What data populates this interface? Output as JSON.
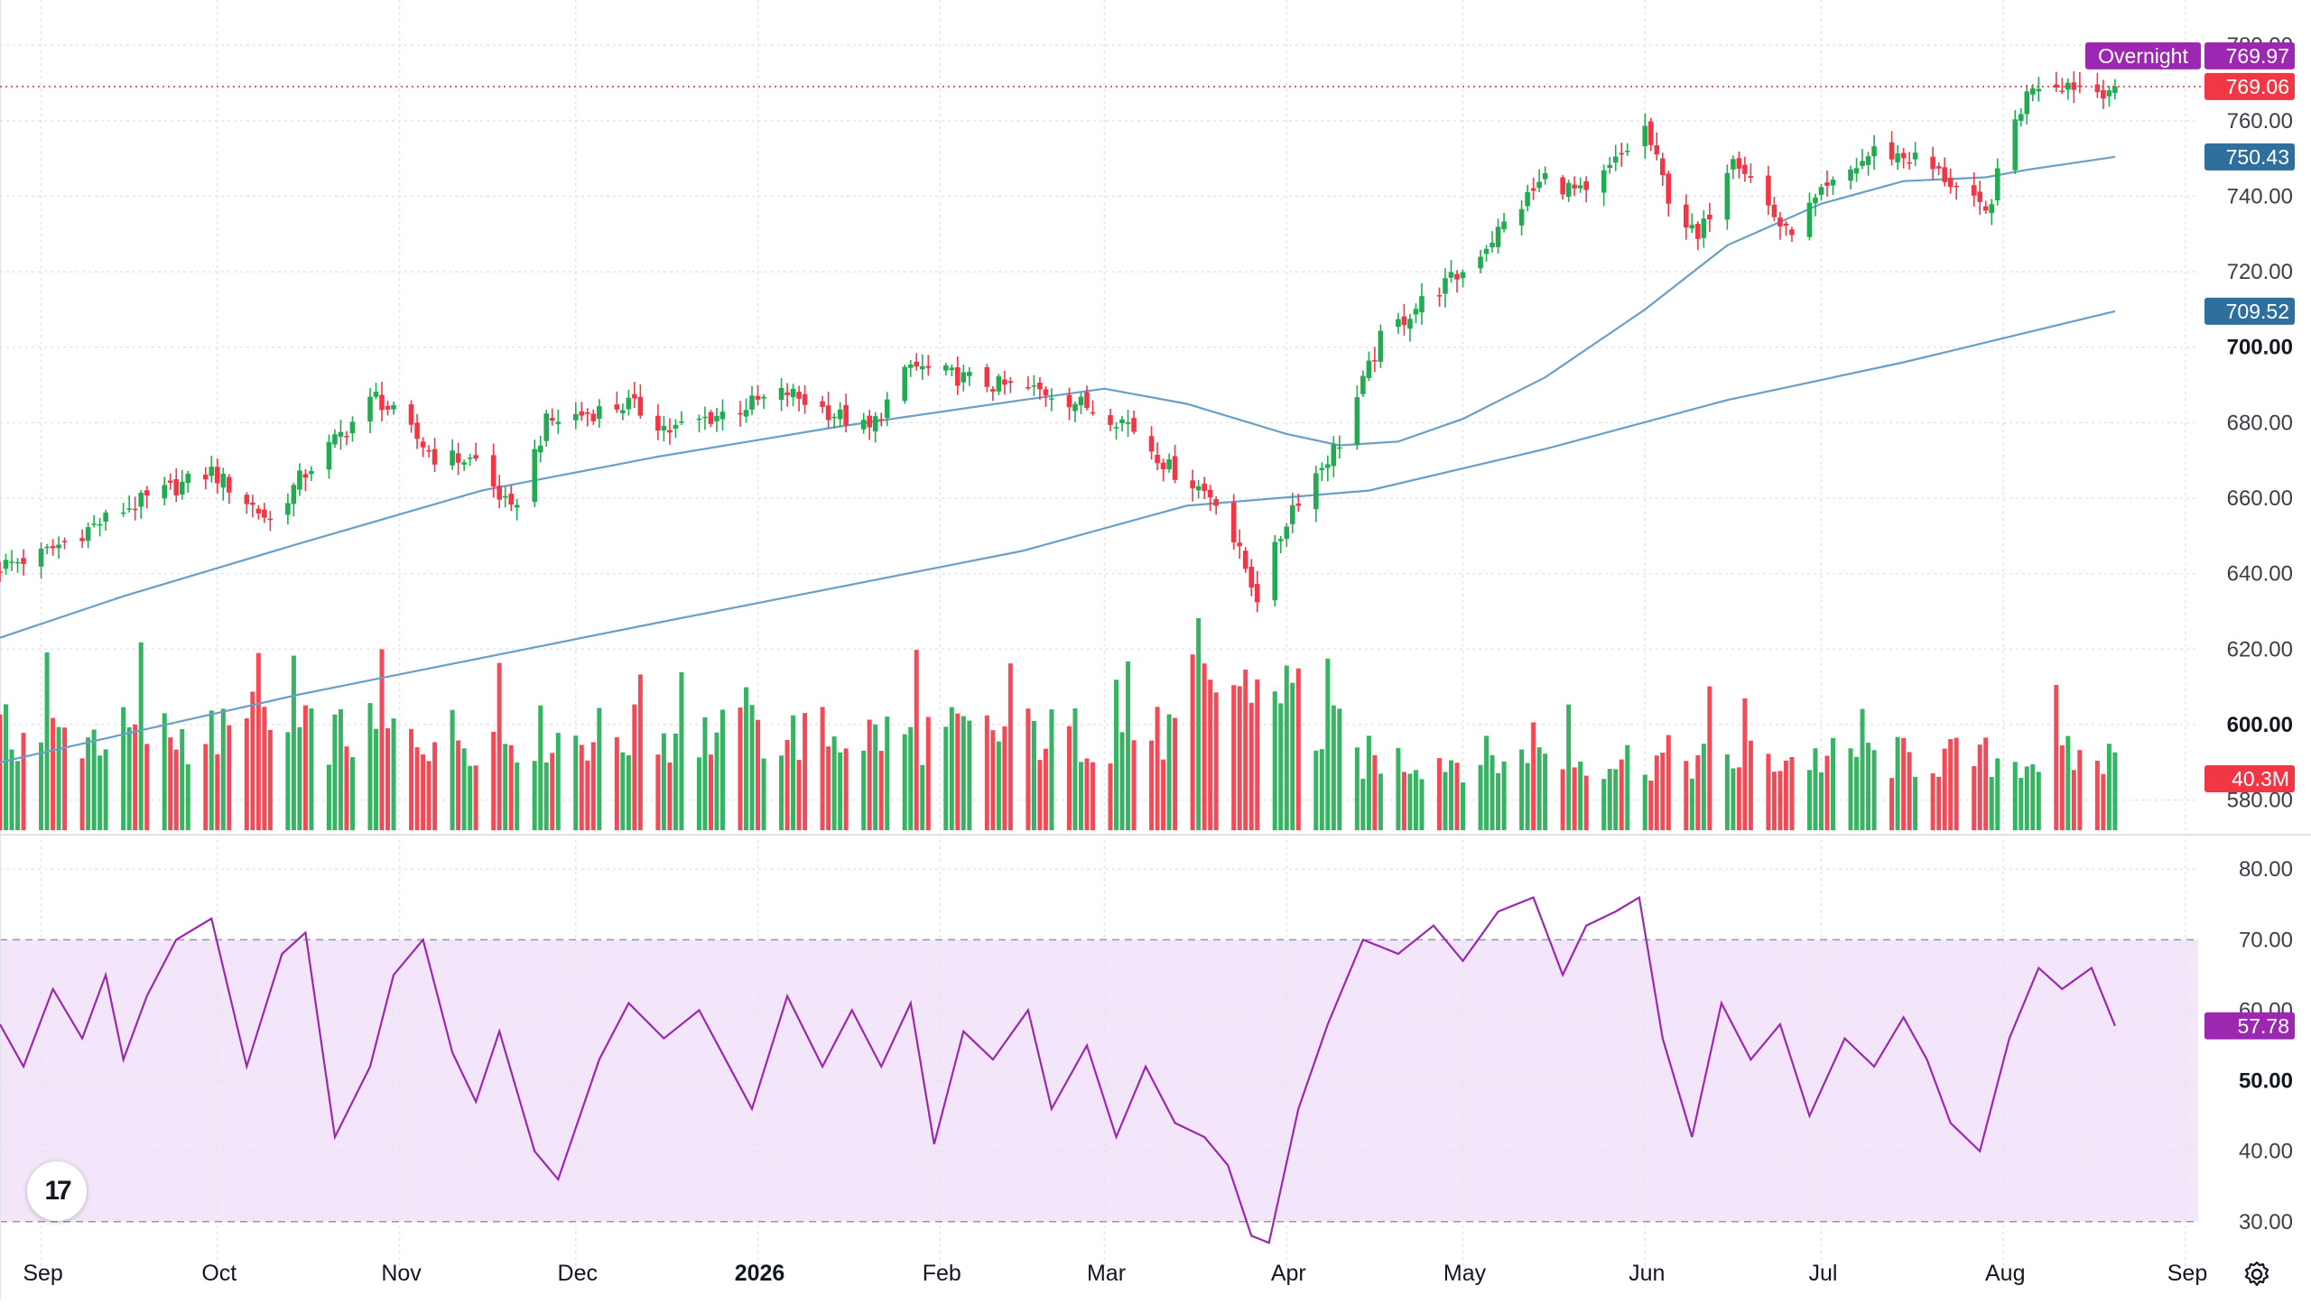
{
  "chart_data": [
    {
      "type": "candlestick",
      "title": "",
      "price_scale": {
        "ylim": [
          572,
          792
        ],
        "ticks": [
          580,
          600,
          620,
          640,
          660,
          680,
          700,
          720,
          740,
          760,
          780
        ]
      },
      "time_scale": {
        "labels": [
          "Sep",
          "Oct",
          "Nov",
          "Dec",
          "2026",
          "Feb",
          "Mar",
          "Apr",
          "May",
          "Jun",
          "Jul",
          "Aug",
          "Sep"
        ],
        "label_dates": [
          "2025-09-01",
          "2025-10-01",
          "2025-11-01",
          "2025-12-01",
          "2026-01-01",
          "2026-02-01",
          "2026-03-01",
          "2026-04-01",
          "2026-05-01",
          "2026-06-01",
          "2026-07-01",
          "2026-08-01",
          "2026-09-01"
        ],
        "range": [
          "2025-08-25",
          "2026-09-01"
        ]
      },
      "price_close": [
        [
          "2025-08-25",
          642
        ],
        [
          "2025-09-01",
          645
        ],
        [
          "2025-09-15",
          657
        ],
        [
          "2025-09-30",
          667
        ],
        [
          "2025-10-10",
          654
        ],
        [
          "2025-10-15",
          665
        ],
        [
          "2025-10-28",
          687
        ],
        [
          "2025-11-07",
          671
        ],
        [
          "2025-11-14",
          670
        ],
        [
          "2025-11-20",
          656
        ],
        [
          "2025-11-26",
          680
        ],
        [
          "2025-12-10",
          685
        ],
        [
          "2025-12-17",
          678
        ],
        [
          "2026-01-06",
          688
        ],
        [
          "2026-01-20",
          678
        ],
        [
          "2026-01-27",
          695
        ],
        [
          "2026-02-10",
          690
        ],
        [
          "2026-02-20",
          688
        ],
        [
          "2026-03-05",
          680
        ],
        [
          "2026-03-12",
          668
        ],
        [
          "2026-03-20",
          660
        ],
        [
          "2026-03-27",
          634
        ],
        [
          "2026-04-02",
          658
        ],
        [
          "2026-04-10",
          675
        ],
        [
          "2026-04-17",
          702
        ],
        [
          "2026-04-24",
          712
        ],
        [
          "2026-05-01",
          720
        ],
        [
          "2026-05-15",
          745
        ],
        [
          "2026-05-22",
          740
        ],
        [
          "2026-06-01",
          758
        ],
        [
          "2026-06-05",
          740
        ],
        [
          "2026-06-10",
          728
        ],
        [
          "2026-06-16",
          752
        ],
        [
          "2026-06-25",
          730
        ],
        [
          "2026-07-01",
          740
        ],
        [
          "2026-07-10",
          752
        ],
        [
          "2026-07-17",
          750
        ],
        [
          "2026-07-22",
          745
        ],
        [
          "2026-07-29",
          735
        ],
        [
          "2026-08-03",
          760
        ],
        [
          "2026-08-06",
          770
        ],
        [
          "2026-08-12",
          770
        ],
        [
          "2026-08-17",
          768
        ],
        [
          "2026-08-20",
          769.06
        ]
      ],
      "series": [
        {
          "name": "",
          "type": "line",
          "color": "#6a9fc7",
          "points": [
            [
              "2025-08-25",
              623
            ],
            [
              "2025-09-15",
              634
            ],
            [
              "2025-10-15",
              648
            ],
            [
              "2025-11-15",
              662
            ],
            [
              "2025-12-15",
              671
            ],
            [
              "2026-01-15",
              679
            ],
            [
              "2026-02-15",
              686
            ],
            [
              "2026-03-01",
              689
            ],
            [
              "2026-03-15",
              685
            ],
            [
              "2026-04-01",
              677
            ],
            [
              "2026-04-10",
              674
            ],
            [
              "2026-04-20",
              675
            ],
            [
              "2026-05-01",
              681
            ],
            [
              "2026-05-15",
              692
            ],
            [
              "2026-06-01",
              710
            ],
            [
              "2026-06-15",
              727
            ],
            [
              "2026-07-01",
              738
            ],
            [
              "2026-07-15",
              744
            ],
            [
              "2026-07-29",
              745
            ],
            [
              "2026-08-05",
              747
            ],
            [
              "2026-08-20",
              750.43
            ]
          ]
        },
        {
          "name": "",
          "type": "line",
          "color": "#6a9fc7",
          "points": [
            [
              "2025-08-25",
              590
            ],
            [
              "2025-10-15",
              608
            ],
            [
              "2025-12-15",
              627
            ],
            [
              "2026-02-15",
              646
            ],
            [
              "2026-03-15",
              658
            ],
            [
              "2026-04-15",
              662
            ],
            [
              "2026-05-15",
              673
            ],
            [
              "2026-06-15",
              686
            ],
            [
              "2026-07-15",
              696
            ],
            [
              "2026-08-20",
              709.52
            ]
          ]
        }
      ],
      "volume_scale": {
        "ylim": [
          0,
          3
        ],
        "ticks": []
      },
      "volume_latest": "40.3M",
      "price_labels": [
        {
          "text": "Overnight",
          "value": "769.97",
          "color": "#9c27b0"
        },
        {
          "text": "",
          "value": "769.06",
          "color": "#f23645"
        },
        {
          "text": "",
          "value": "750.43",
          "color": "#2f6f9e"
        },
        {
          "text": "",
          "value": "709.52",
          "color": "#2f6f9e"
        },
        {
          "text": "",
          "value": "40.3M",
          "color": "#f23645"
        }
      ],
      "colors": {
        "up": "#22ab52",
        "down": "#f23645",
        "ma": "#6a9fc7"
      }
    },
    {
      "type": "line",
      "title": "",
      "ylim": [
        26,
        84
      ],
      "ticks": [
        30,
        40,
        50,
        60,
        70,
        80
      ],
      "band": [
        30,
        70
      ],
      "band_color": "#f3e6fb",
      "line_color": "#9c27b0",
      "points": [
        [
          "2025-08-25",
          58
        ],
        [
          "2025-08-29",
          52
        ],
        [
          "2025-09-03",
          63
        ],
        [
          "2025-09-08",
          56
        ],
        [
          "2025-09-12",
          65
        ],
        [
          "2025-09-15",
          53
        ],
        [
          "2025-09-19",
          62
        ],
        [
          "2025-09-24",
          70
        ],
        [
          "2025-09-30",
          73
        ],
        [
          "2025-10-06",
          52
        ],
        [
          "2025-10-12",
          68
        ],
        [
          "2025-10-16",
          71
        ],
        [
          "2025-10-21",
          42
        ],
        [
          "2025-10-27",
          52
        ],
        [
          "2025-10-31",
          65
        ],
        [
          "2025-11-05",
          70
        ],
        [
          "2025-11-10",
          54
        ],
        [
          "2025-11-14",
          47
        ],
        [
          "2025-11-18",
          57
        ],
        [
          "2025-11-24",
          40
        ],
        [
          "2025-11-28",
          36
        ],
        [
          "2025-12-05",
          53
        ],
        [
          "2025-12-10",
          61
        ],
        [
          "2025-12-16",
          56
        ],
        [
          "2025-12-22",
          60
        ],
        [
          "2025-12-31",
          46
        ],
        [
          "2026-01-06",
          62
        ],
        [
          "2026-01-12",
          52
        ],
        [
          "2026-01-17",
          60
        ],
        [
          "2026-01-22",
          52
        ],
        [
          "2026-01-27",
          61
        ],
        [
          "2026-01-31",
          41
        ],
        [
          "2026-02-05",
          57
        ],
        [
          "2026-02-10",
          53
        ],
        [
          "2026-02-16",
          60
        ],
        [
          "2026-02-20",
          46
        ],
        [
          "2026-02-26",
          55
        ],
        [
          "2026-03-03",
          42
        ],
        [
          "2026-03-08",
          52
        ],
        [
          "2026-03-13",
          44
        ],
        [
          "2026-03-18",
          42
        ],
        [
          "2026-03-22",
          38
        ],
        [
          "2026-03-26",
          28
        ],
        [
          "2026-03-29",
          27
        ],
        [
          "2026-04-03",
          46
        ],
        [
          "2026-04-08",
          58
        ],
        [
          "2026-04-14",
          70
        ],
        [
          "2026-04-20",
          68
        ],
        [
          "2026-04-26",
          72
        ],
        [
          "2026-05-01",
          67
        ],
        [
          "2026-05-07",
          74
        ],
        [
          "2026-05-13",
          76
        ],
        [
          "2026-05-18",
          65
        ],
        [
          "2026-05-22",
          72
        ],
        [
          "2026-05-27",
          74
        ],
        [
          "2026-05-31",
          76
        ],
        [
          "2026-06-04",
          56
        ],
        [
          "2026-06-09",
          42
        ],
        [
          "2026-06-14",
          61
        ],
        [
          "2026-06-19",
          53
        ],
        [
          "2026-06-24",
          58
        ],
        [
          "2026-06-29",
          45
        ],
        [
          "2026-07-05",
          56
        ],
        [
          "2026-07-10",
          52
        ],
        [
          "2026-07-15",
          59
        ],
        [
          "2026-07-19",
          53
        ],
        [
          "2026-07-23",
          44
        ],
        [
          "2026-07-28",
          40
        ],
        [
          "2026-08-02",
          56
        ],
        [
          "2026-08-07",
          66
        ],
        [
          "2026-08-11",
          63
        ],
        [
          "2026-08-16",
          66
        ],
        [
          "2026-08-20",
          57.78
        ]
      ],
      "latest_label": "57.78"
    }
  ],
  "ui": {
    "logo_text": "17",
    "settings_icon": "gear-icon"
  }
}
